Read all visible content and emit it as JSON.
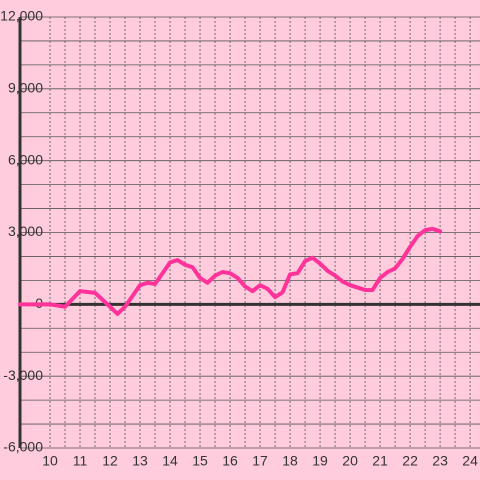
{
  "chart_data": {
    "type": "line",
    "x": [
      9.0,
      9.5,
      10.0,
      10.5,
      11.0,
      11.5,
      12.0,
      12.25,
      12.5,
      13.0,
      13.25,
      13.5,
      13.75,
      14.0,
      14.25,
      14.5,
      14.75,
      15.0,
      15.25,
      15.5,
      15.75,
      16.0,
      16.25,
      16.5,
      16.75,
      17.0,
      17.25,
      17.5,
      17.75,
      18.0,
      18.25,
      18.5,
      18.75,
      19.0,
      19.25,
      19.5,
      19.75,
      20.0,
      20.25,
      20.5,
      20.75,
      21.0,
      21.25,
      21.5,
      21.75,
      22.0,
      22.25,
      22.5,
      22.75,
      23.0
    ],
    "series": [
      {
        "color": "#ff3399",
        "values": [
          0,
          0,
          0,
          -100,
          550,
          480,
          -100,
          -400,
          -100,
          800,
          900,
          850,
          1300,
          1750,
          1850,
          1650,
          1550,
          1100,
          900,
          1200,
          1350,
          1300,
          1100,
          750,
          550,
          800,
          650,
          300,
          500,
          1250,
          1300,
          1800,
          1950,
          1700,
          1400,
          1200,
          950,
          800,
          700,
          600,
          600,
          1100,
          1350,
          1500,
          1900,
          2400,
          2850,
          3100,
          3150,
          3050
        ]
      }
    ],
    "xlim": [
      9,
      24.33
    ],
    "xticks": [
      10,
      11,
      12,
      13,
      14,
      15,
      16,
      17,
      18,
      19,
      20,
      21,
      22,
      23,
      24
    ],
    "xminorticks": [
      10.5,
      11.5,
      12.5,
      13.5,
      14.5,
      15.5,
      16.5,
      17.5,
      18.5,
      19.5,
      20.5,
      21.5,
      22.5,
      23.5
    ],
    "ylim": [
      -6000,
      12000
    ],
    "yticks": [
      {
        "value": -6000,
        "label": "-6,000"
      },
      {
        "value": -3000,
        "label": "-3,000"
      },
      0,
      {
        "value": 3000,
        "label": "3,000"
      },
      {
        "value": 6000,
        "label": "6,000"
      },
      {
        "value": 9000,
        "label": "9,000"
      },
      {
        "value": 12000,
        "label": "12,000"
      }
    ],
    "yminorticks": [
      -5000,
      -4000,
      -2000,
      -1000,
      1000,
      2000,
      4000,
      5000,
      7000,
      8000,
      10000,
      11000
    ],
    "grid": true
  }
}
